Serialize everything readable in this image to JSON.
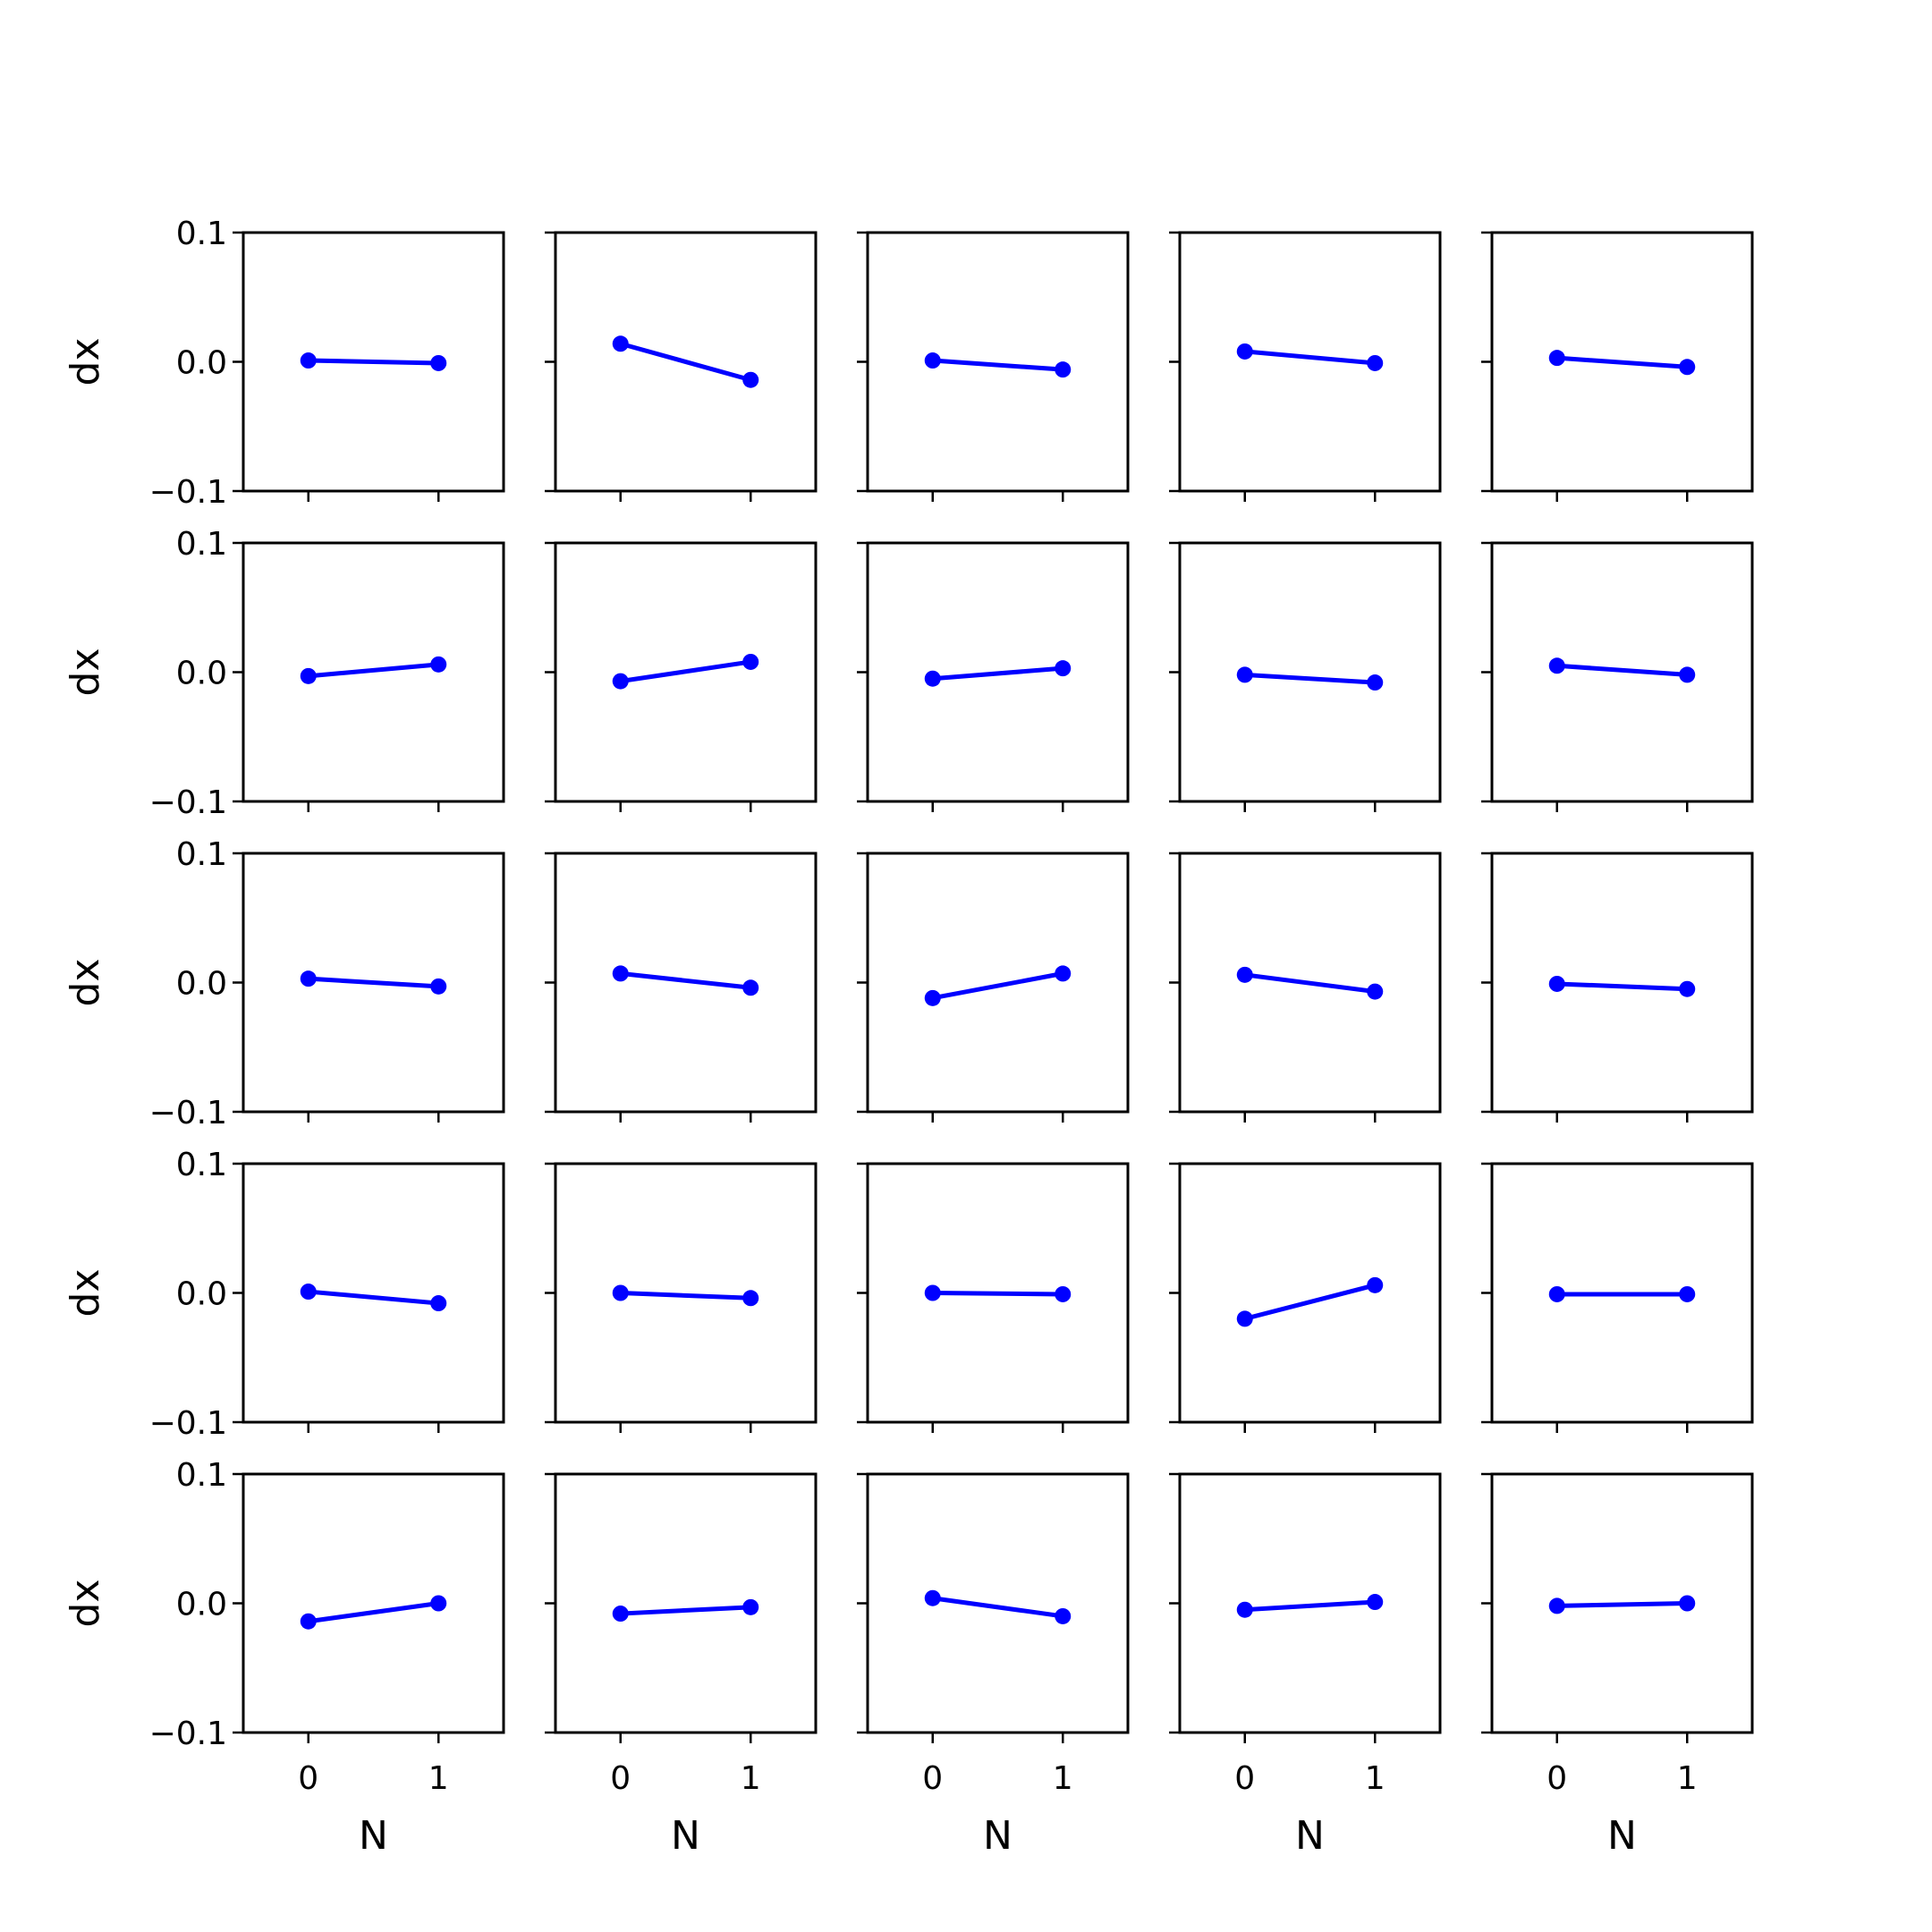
{
  "colors": {
    "series": "#0000ff",
    "axes": "#000000",
    "background": "#ffffff"
  },
  "chart_data": {
    "type": "line",
    "layout": "grid",
    "rows": 5,
    "cols": 5,
    "xlabel": "N",
    "ylabel": "dx",
    "xlim": [
      -0.5,
      1.5
    ],
    "ylim": [
      -0.1,
      0.1
    ],
    "xticks": [
      0,
      1
    ],
    "xtick_labels": [
      "0",
      "1"
    ],
    "yticks": [
      -0.1,
      0.0,
      0.1
    ],
    "ytick_labels": [
      "−0.1",
      "0.0",
      "0.1"
    ],
    "grid": false,
    "panels": [
      {
        "x": [
          0,
          1
        ],
        "y": [
          0.001,
          -0.001
        ]
      },
      {
        "x": [
          0,
          1
        ],
        "y": [
          0.014,
          -0.014
        ]
      },
      {
        "x": [
          0,
          1
        ],
        "y": [
          0.001,
          -0.006
        ]
      },
      {
        "x": [
          0,
          1
        ],
        "y": [
          0.008,
          -0.001
        ]
      },
      {
        "x": [
          0,
          1
        ],
        "y": [
          0.003,
          -0.004
        ]
      },
      {
        "x": [
          0,
          1
        ],
        "y": [
          -0.003,
          0.006
        ]
      },
      {
        "x": [
          0,
          1
        ],
        "y": [
          -0.007,
          0.008
        ]
      },
      {
        "x": [
          0,
          1
        ],
        "y": [
          -0.005,
          0.003
        ]
      },
      {
        "x": [
          0,
          1
        ],
        "y": [
          -0.002,
          -0.008
        ]
      },
      {
        "x": [
          0,
          1
        ],
        "y": [
          0.005,
          -0.002
        ]
      },
      {
        "x": [
          0,
          1
        ],
        "y": [
          0.003,
          -0.003
        ]
      },
      {
        "x": [
          0,
          1
        ],
        "y": [
          0.007,
          -0.004
        ]
      },
      {
        "x": [
          0,
          1
        ],
        "y": [
          -0.012,
          0.007
        ]
      },
      {
        "x": [
          0,
          1
        ],
        "y": [
          0.006,
          -0.007
        ]
      },
      {
        "x": [
          0,
          1
        ],
        "y": [
          -0.001,
          -0.005
        ]
      },
      {
        "x": [
          0,
          1
        ],
        "y": [
          0.001,
          -0.008
        ]
      },
      {
        "x": [
          0,
          1
        ],
        "y": [
          0.0,
          -0.004
        ]
      },
      {
        "x": [
          0,
          1
        ],
        "y": [
          0.0,
          -0.001
        ]
      },
      {
        "x": [
          0,
          1
        ],
        "y": [
          -0.02,
          0.006
        ]
      },
      {
        "x": [
          0,
          1
        ],
        "y": [
          -0.001,
          -0.001
        ]
      },
      {
        "x": [
          0,
          1
        ],
        "y": [
          -0.014,
          0.0
        ]
      },
      {
        "x": [
          0,
          1
        ],
        "y": [
          -0.008,
          -0.003
        ]
      },
      {
        "x": [
          0,
          1
        ],
        "y": [
          0.004,
          -0.01
        ]
      },
      {
        "x": [
          0,
          1
        ],
        "y": [
          -0.005,
          0.001
        ]
      },
      {
        "x": [
          0,
          1
        ],
        "y": [
          -0.002,
          0.0
        ]
      }
    ]
  }
}
